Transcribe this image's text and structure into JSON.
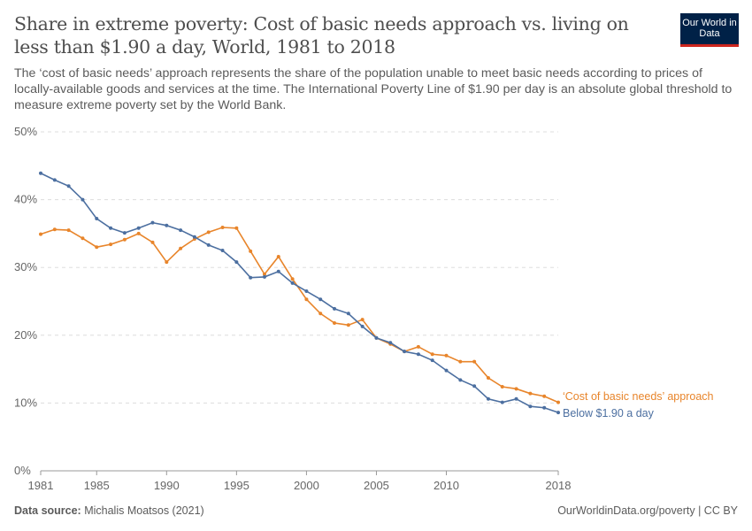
{
  "header": {
    "title": "Share in extreme poverty: Cost of basic needs approach vs. living on less than $1.90 a day, World, 1981 to 2018",
    "subtitle": "The ‘cost of basic needs’ approach represents the share of the population unable to meet basic needs according to prices of locally-available goods and services at the time. The International Poverty Line of $1.90 per day is an absolute global threshold to measure extreme poverty set by the World Bank.",
    "logo": "Our World in Data"
  },
  "footer": {
    "source_label": "Data source:",
    "source": "Michalis Moatsos (2021)",
    "right": "OurWorldinData.org/poverty | CC BY"
  },
  "chart_data": {
    "type": "line",
    "title": "",
    "xlabel": "",
    "ylabel": "",
    "xlim": [
      1981,
      2018
    ],
    "ylim": [
      0,
      50
    ],
    "grid": "horizontal dashed",
    "legend": "right, inline labels",
    "x_ticks": [
      1981,
      1985,
      1990,
      1995,
      2000,
      2005,
      2010,
      2018
    ],
    "y_ticks": [
      "0%",
      "10%",
      "20%",
      "30%",
      "40%",
      "50%"
    ],
    "x": [
      1981,
      1982,
      1983,
      1984,
      1985,
      1986,
      1987,
      1988,
      1989,
      1990,
      1991,
      1992,
      1993,
      1994,
      1995,
      1996,
      1997,
      1998,
      1999,
      2000,
      2001,
      2002,
      2003,
      2004,
      2005,
      2006,
      2007,
      2008,
      2009,
      2010,
      2011,
      2012,
      2013,
      2014,
      2015,
      2016,
      2017,
      2018
    ],
    "series": [
      {
        "name": "‘Cost of basic needs’ approach",
        "color": "#e8852b",
        "values": [
          34.9,
          35.6,
          35.5,
          34.3,
          33.0,
          33.4,
          34.1,
          35.0,
          33.7,
          30.8,
          32.8,
          34.2,
          35.2,
          35.9,
          35.8,
          32.4,
          29.0,
          31.6,
          28.3,
          25.3,
          23.2,
          21.8,
          21.5,
          22.3,
          19.6,
          18.7,
          17.6,
          18.3,
          17.2,
          17.0,
          16.1,
          16.1,
          13.7,
          12.4,
          12.1,
          11.4,
          11.0,
          10.1
        ]
      },
      {
        "name": "Below $1.90 a day",
        "color": "#4c6fa0",
        "values": [
          43.9,
          42.9,
          42.0,
          40.0,
          37.2,
          35.8,
          35.1,
          35.8,
          36.6,
          36.2,
          35.5,
          34.5,
          33.3,
          32.5,
          30.8,
          28.5,
          28.6,
          29.4,
          27.7,
          26.5,
          25.3,
          23.9,
          23.2,
          21.3,
          19.6,
          18.9,
          17.6,
          17.2,
          16.3,
          14.8,
          13.4,
          12.5,
          10.6,
          10.1,
          10.6,
          9.5,
          9.3,
          8.6
        ]
      }
    ]
  }
}
